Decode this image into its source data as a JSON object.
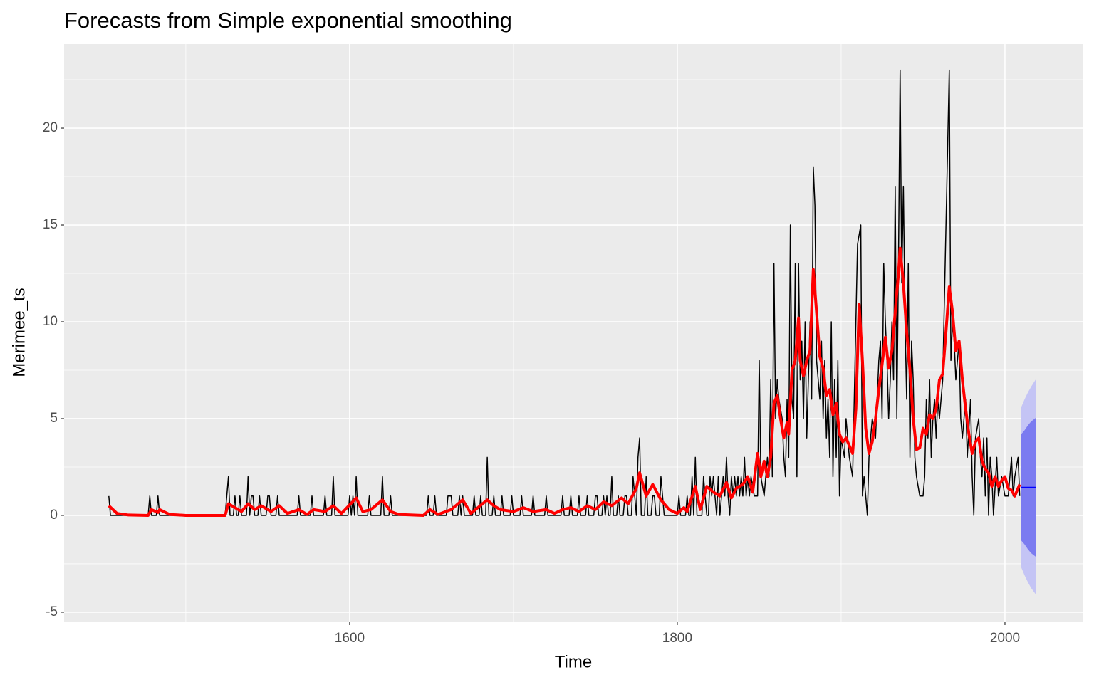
{
  "chart_data": {
    "type": "forecast",
    "title": "Forecasts from Simple exponential smoothing",
    "x_label": "Time",
    "y_label": "Merimee_ts",
    "xlim": [
      1425.7,
      2047.4
    ],
    "ylim": [
      -5.48,
      24.34
    ],
    "xticks": [
      1600,
      1800,
      2000
    ],
    "yticks": [
      -5,
      0,
      5,
      10,
      15,
      20
    ],
    "x_minor_ticks": [
      1500,
      1700,
      1900
    ],
    "y_minor_ticks": [
      -2.5,
      2.5,
      7.5,
      12.5,
      17.5,
      22.5
    ],
    "grid": true,
    "series": [
      {
        "color": "#000000",
        "x": [
          1453,
          1454,
          1477,
          1478,
          1479,
          1482,
          1483,
          1484,
          1524,
          1525,
          1526,
          1527,
          1529,
          1530,
          1531,
          1532,
          1533,
          1534,
          1537,
          1538,
          1539,
          1540,
          1541,
          1542,
          1544,
          1545,
          1546,
          1549,
          1550,
          1551,
          1552,
          1555,
          1556,
          1557,
          1568,
          1569,
          1570,
          1576,
          1577,
          1578,
          1584,
          1585,
          1586,
          1589,
          1590,
          1591,
          1599,
          1600,
          1601,
          1602,
          1603,
          1604,
          1605,
          1611,
          1612,
          1613,
          1619,
          1620,
          1621,
          1624,
          1625,
          1626,
          1647,
          1648,
          1649,
          1651,
          1652,
          1653,
          1659,
          1660,
          1661,
          1662,
          1663,
          1666,
          1667,
          1668,
          1669,
          1670,
          1675,
          1676,
          1677,
          1679,
          1680,
          1681,
          1683,
          1684,
          1685,
          1687,
          1688,
          1689,
          1692,
          1693,
          1694,
          1698,
          1699,
          1700,
          1704,
          1705,
          1706,
          1711,
          1712,
          1713,
          1719,
          1720,
          1721,
          1729,
          1730,
          1731,
          1734,
          1735,
          1736,
          1739,
          1740,
          1741,
          1744,
          1745,
          1746,
          1749,
          1750,
          1751,
          1752,
          1754,
          1755,
          1756,
          1757,
          1758,
          1759,
          1760,
          1761,
          1763,
          1764,
          1765,
          1767,
          1768,
          1769,
          1770,
          1772,
          1773,
          1774,
          1775,
          1776,
          1777,
          1778,
          1780,
          1781,
          1782,
          1784,
          1785,
          1786,
          1787,
          1789,
          1790,
          1791,
          1792,
          1800,
          1801,
          1802,
          1805,
          1806,
          1807,
          1808,
          1809,
          1810,
          1811,
          1812,
          1815,
          1816,
          1817,
          1818,
          1819,
          1820,
          1821,
          1822,
          1823,
          1824,
          1825,
          1826,
          1827,
          1828,
          1829,
          1830,
          1831,
          1832,
          1833,
          1834,
          1835,
          1836,
          1837,
          1838,
          1839,
          1840,
          1841,
          1842,
          1843,
          1844,
          1845,
          1847,
          1849,
          1850,
          1851,
          1853,
          1855,
          1856,
          1857,
          1858,
          1859,
          1860,
          1861,
          1862,
          1864,
          1865,
          1866,
          1867,
          1868,
          1869,
          1870,
          1871,
          1872,
          1873,
          1874,
          1875,
          1876,
          1877,
          1878,
          1879,
          1881,
          1882,
          1883,
          1884,
          1885,
          1887,
          1888,
          1889,
          1890,
          1891,
          1892,
          1893,
          1894,
          1895,
          1896,
          1897,
          1898,
          1899,
          1900,
          1902,
          1903,
          1905,
          1907,
          1909,
          1910,
          1912,
          1913,
          1914,
          1916,
          1917,
          1919,
          1921,
          1923,
          1924,
          1925,
          1926,
          1927,
          1928,
          1929,
          1930,
          1931,
          1932,
          1933,
          1934,
          1935,
          1936,
          1937,
          1938,
          1939,
          1940,
          1941,
          1942,
          1943,
          1944,
          1945,
          1946,
          1948,
          1950,
          1951,
          1952,
          1953,
          1954,
          1955,
          1956,
          1957,
          1958,
          1959,
          1960,
          1962,
          1964,
          1966,
          1967,
          1968,
          1969,
          1970,
          1971,
          1972,
          1973,
          1974,
          1976,
          1977,
          1979,
          1980,
          1981,
          1982,
          1984,
          1985,
          1986,
          1987,
          1988,
          1989,
          1990,
          1991,
          1992,
          1993,
          1995,
          1996,
          1998,
          2000,
          2002,
          2004,
          2005,
          2006,
          2008,
          2009
        ],
        "values": [
          1,
          0,
          0,
          1,
          0,
          0,
          1,
          0,
          0,
          1,
          2,
          0,
          0,
          1,
          0,
          0,
          1,
          0,
          0,
          2,
          0,
          1,
          1,
          0,
          0,
          1,
          0,
          0,
          1,
          1,
          0,
          0,
          1,
          0,
          0,
          1,
          0,
          0,
          1,
          0,
          0,
          1,
          0,
          0,
          2,
          0,
          0,
          1,
          0,
          1,
          0,
          2,
          0,
          0,
          1,
          0,
          0,
          2,
          0,
          0,
          1,
          0,
          0,
          1,
          0,
          0,
          1,
          0,
          0,
          1,
          1,
          1,
          0,
          0,
          1,
          0,
          1,
          0,
          0,
          1,
          0,
          0,
          1,
          0,
          0,
          3,
          0,
          0,
          1,
          0,
          0,
          1,
          0,
          0,
          1,
          0,
          0,
          1,
          0,
          0,
          1,
          0,
          0,
          1,
          0,
          0,
          1,
          0,
          0,
          1,
          0,
          0,
          1,
          0,
          0,
          1,
          0,
          0,
          1,
          1,
          0,
          0,
          1,
          0,
          1,
          0,
          0,
          2,
          0,
          0,
          1,
          0,
          0,
          1,
          1,
          0,
          0,
          2,
          1,
          0,
          3,
          4,
          0,
          0,
          2,
          0,
          0,
          1,
          1,
          0,
          0,
          2,
          1,
          0,
          0,
          1,
          0,
          0,
          1,
          0,
          0,
          2,
          0,
          3,
          0,
          0,
          2,
          1,
          0,
          0,
          2,
          1,
          2,
          1,
          0,
          2,
          0,
          1,
          2,
          1,
          3,
          1,
          0,
          2,
          1,
          2,
          1,
          2,
          1,
          2,
          1,
          3,
          1,
          2,
          1,
          2,
          1,
          1,
          8,
          2,
          1,
          3,
          2,
          7,
          2,
          13,
          5,
          7,
          6,
          5,
          3,
          2,
          6,
          3,
          15,
          6,
          5,
          13,
          2,
          13,
          7,
          9,
          5,
          10,
          4,
          10,
          6,
          18,
          16,
          8,
          6,
          9,
          5,
          8,
          4,
          6,
          3,
          10,
          2,
          7,
          3,
          8,
          1,
          4,
          3,
          5,
          3,
          2,
          10,
          14,
          15,
          1,
          2,
          0,
          3,
          5,
          4,
          8,
          9,
          5,
          13,
          10,
          8,
          5,
          7,
          10,
          7,
          17,
          5,
          13,
          23,
          12,
          17,
          10,
          6,
          13,
          3,
          9,
          7,
          3,
          2,
          1,
          1,
          2,
          6,
          4,
          7,
          3,
          5,
          6,
          4,
          6,
          5,
          7,
          15,
          23,
          8,
          10,
          9,
          7,
          8,
          9,
          5,
          4,
          6,
          3,
          6,
          2,
          0,
          4,
          5,
          3,
          2,
          4,
          1,
          4,
          0,
          3,
          2,
          0,
          3,
          1,
          2,
          1,
          1,
          3,
          1,
          2,
          3,
          1
        ]
      },
      {
        "color": "#ff0000",
        "x": [
          1453,
          1458,
          1465,
          1477,
          1479,
          1483,
          1484,
          1490,
          1500,
          1524,
          1526,
          1530,
          1534,
          1538,
          1542,
          1546,
          1552,
          1557,
          1562,
          1569,
          1574,
          1578,
          1585,
          1590,
          1595,
          1604,
          1608,
          1613,
          1620,
          1625,
          1630,
          1645,
          1649,
          1654,
          1662,
          1669,
          1674,
          1684,
          1688,
          1692,
          1700,
          1706,
          1712,
          1720,
          1725,
          1730,
          1735,
          1740,
          1745,
          1750,
          1755,
          1760,
          1766,
          1770,
          1775,
          1777,
          1781,
          1785,
          1790,
          1795,
          1800,
          1804,
          1806,
          1811,
          1814,
          1818,
          1822,
          1826,
          1830,
          1833,
          1836,
          1840,
          1843,
          1846,
          1849,
          1851,
          1853,
          1855,
          1857,
          1859,
          1861,
          1863,
          1865,
          1867,
          1868,
          1870,
          1872,
          1874,
          1875,
          1877,
          1879,
          1881,
          1883,
          1885,
          1887,
          1889,
          1891,
          1893,
          1895,
          1897,
          1899,
          1901,
          1903,
          1905,
          1907,
          1909,
          1911,
          1913,
          1915,
          1917,
          1919,
          1921,
          1923,
          1925,
          1927,
          1929,
          1931,
          1933,
          1935,
          1936,
          1938,
          1940,
          1942,
          1944,
          1946,
          1948,
          1950,
          1952,
          1954,
          1956,
          1958,
          1960,
          1962,
          1964,
          1966,
          1968,
          1970,
          1972,
          1974,
          1976,
          1978,
          1980,
          1982,
          1984,
          1986,
          1988,
          1990,
          1992,
          1994,
          1996,
          1998,
          2000,
          2002,
          2004,
          2006,
          2009
        ],
        "values": [
          0.5,
          0.1,
          0.02,
          0,
          0.3,
          0.15,
          0.3,
          0.05,
          0,
          0,
          0.6,
          0.4,
          0.2,
          0.6,
          0.3,
          0.5,
          0.2,
          0.5,
          0.1,
          0.3,
          0.05,
          0.3,
          0.2,
          0.5,
          0.1,
          0.9,
          0.2,
          0.3,
          0.8,
          0.2,
          0.05,
          0,
          0.3,
          0.05,
          0.3,
          0.8,
          0.1,
          0.8,
          0.5,
          0.3,
          0.2,
          0.4,
          0.2,
          0.3,
          0.1,
          0.3,
          0.4,
          0.2,
          0.5,
          0.3,
          0.7,
          0.5,
          0.9,
          0.6,
          1.4,
          2.2,
          1,
          1.6,
          0.8,
          0.3,
          0.1,
          0.4,
          0.2,
          1.5,
          0.3,
          1.5,
          1.2,
          1,
          1.7,
          0.9,
          1.4,
          1.6,
          2,
          1.2,
          3.2,
          2,
          2.8,
          2,
          3,
          5.8,
          6.2,
          5,
          4,
          4.8,
          4.2,
          7.5,
          8,
          10.2,
          8,
          7.2,
          8,
          8.5,
          12.7,
          10.5,
          8.2,
          7.6,
          6.2,
          6.5,
          5.2,
          5.8,
          4.2,
          3.8,
          4,
          3.6,
          3.2,
          5.5,
          10.9,
          8,
          4.5,
          3.2,
          3.8,
          5,
          6.5,
          7.8,
          9.2,
          7.6,
          8.5,
          10.5,
          12.5,
          13.8,
          12,
          9.5,
          7.5,
          5,
          3.4,
          3.5,
          4.5,
          4.2,
          5.2,
          5,
          5.5,
          7,
          7.3,
          9.5,
          11.8,
          10.5,
          8.5,
          9,
          7,
          5.5,
          4.2,
          3.2,
          3.8,
          4,
          2.8,
          2.4,
          2.2,
          1.5,
          2,
          1.5,
          1.8,
          2,
          1.4,
          1.3,
          1,
          1.6
        ]
      }
    ],
    "forecast": {
      "color": "#0000ff",
      "x": [
        2010,
        2012,
        2014,
        2016,
        2019
      ],
      "mean": [
        1.45,
        1.45,
        1.45,
        1.45,
        1.45
      ],
      "lower80": [
        -1.3,
        -1.5,
        -1.75,
        -1.95,
        -2.15
      ],
      "upper80": [
        4.2,
        4.4,
        4.65,
        4.85,
        5.05
      ],
      "lower95": [
        -2.7,
        -3.1,
        -3.45,
        -3.75,
        -4.1
      ],
      "upper95": [
        5.6,
        6.0,
        6.35,
        6.65,
        7.05
      ],
      "band80_color": "#7b7bf0",
      "band95_color": "#c4c4f5"
    }
  }
}
